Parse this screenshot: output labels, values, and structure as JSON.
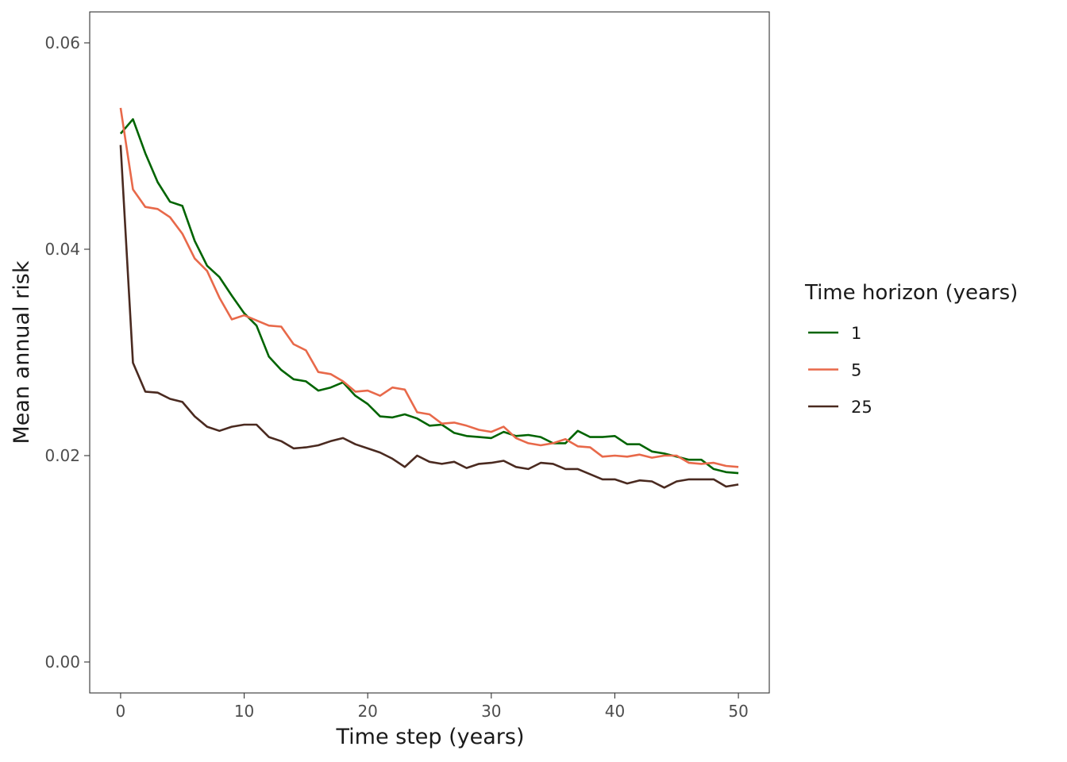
{
  "chart_data": {
    "type": "line",
    "title": "",
    "xlabel": "Time step (years)",
    "ylabel": "Mean annual risk",
    "xlim": [
      -2.5,
      52.5
    ],
    "ylim": [
      -0.003,
      0.063
    ],
    "x_ticks": [
      0,
      10,
      20,
      30,
      40,
      50
    ],
    "x_tick_labels": [
      "0",
      "10",
      "20",
      "30",
      "40",
      "50"
    ],
    "y_ticks": [
      0,
      0.02,
      0.04,
      0.06
    ],
    "y_tick_labels": [
      "0.00",
      "0.02",
      "0.04",
      "0.06"
    ],
    "grid": false,
    "legend": {
      "title": "Time horizon (years)",
      "position": "right"
    },
    "x": [
      0,
      1,
      2,
      3,
      4,
      5,
      6,
      7,
      8,
      9,
      10,
      11,
      12,
      13,
      14,
      15,
      16,
      17,
      18,
      19,
      20,
      21,
      22,
      23,
      24,
      25,
      26,
      27,
      28,
      29,
      30,
      31,
      32,
      33,
      34,
      35,
      36,
      37,
      38,
      39,
      40,
      41,
      42,
      43,
      44,
      45,
      46,
      47,
      48,
      49,
      50
    ],
    "series": [
      {
        "name": "1",
        "color": "#006400",
        "values": [
          0.0512,
          0.0526,
          0.0493,
          0.0465,
          0.0446,
          0.0442,
          0.0408,
          0.0384,
          0.0373,
          0.0355,
          0.0338,
          0.0326,
          0.0296,
          0.0283,
          0.0274,
          0.0272,
          0.0263,
          0.0266,
          0.0271,
          0.0258,
          0.025,
          0.0238,
          0.0237,
          0.024,
          0.0236,
          0.0229,
          0.023,
          0.0222,
          0.0219,
          0.0218,
          0.0217,
          0.0223,
          0.0219,
          0.022,
          0.0218,
          0.0212,
          0.0212,
          0.0224,
          0.0218,
          0.0218,
          0.0219,
          0.0211,
          0.0211,
          0.0204,
          0.0202,
          0.0199,
          0.0196,
          0.0196,
          0.0187,
          0.0184,
          0.0183
        ]
      },
      {
        "name": "5",
        "color": "#E8694A",
        "values": [
          0.0537,
          0.0458,
          0.0441,
          0.0439,
          0.0431,
          0.0415,
          0.0391,
          0.0379,
          0.0353,
          0.0332,
          0.0336,
          0.0331,
          0.0326,
          0.0325,
          0.0308,
          0.0302,
          0.0281,
          0.0279,
          0.0272,
          0.0262,
          0.0263,
          0.0258,
          0.0266,
          0.0264,
          0.0242,
          0.024,
          0.0231,
          0.0232,
          0.0229,
          0.0225,
          0.0223,
          0.0228,
          0.0217,
          0.0212,
          0.021,
          0.0212,
          0.0216,
          0.0209,
          0.0208,
          0.0199,
          0.02,
          0.0199,
          0.0201,
          0.0198,
          0.02,
          0.02,
          0.0193,
          0.0192,
          0.0193,
          0.019,
          0.0189
        ]
      },
      {
        "name": "25",
        "color": "#4A2A20",
        "values": [
          0.0501,
          0.029,
          0.0262,
          0.0261,
          0.0255,
          0.0252,
          0.0238,
          0.0228,
          0.0224,
          0.0228,
          0.023,
          0.023,
          0.0218,
          0.0214,
          0.0207,
          0.0208,
          0.021,
          0.0214,
          0.0217,
          0.0211,
          0.0207,
          0.0203,
          0.0197,
          0.0189,
          0.02,
          0.0194,
          0.0192,
          0.0194,
          0.0188,
          0.0192,
          0.0193,
          0.0195,
          0.0189,
          0.0187,
          0.0193,
          0.0192,
          0.0187,
          0.0187,
          0.0182,
          0.0177,
          0.0177,
          0.0173,
          0.0176,
          0.0175,
          0.0169,
          0.0175,
          0.0177,
          0.0177,
          0.0177,
          0.017,
          0.0172
        ]
      }
    ]
  }
}
